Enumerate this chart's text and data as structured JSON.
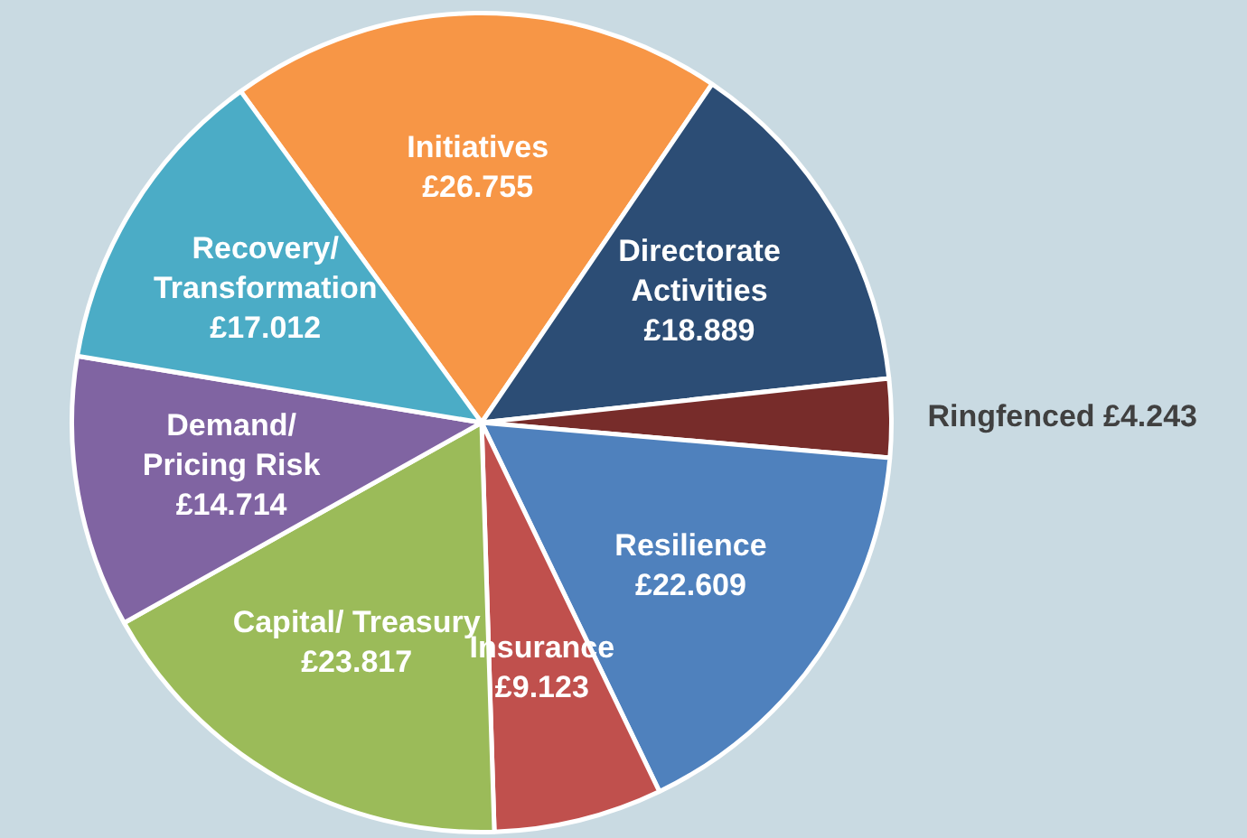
{
  "chart_data": {
    "type": "pie",
    "categories": [
      "Initiatives",
      "Directorate\nActivities",
      "Ringfenced",
      "Resilience",
      "Insurance",
      "Capital/ Treasury",
      "Demand/\nPricing Risk",
      "Recovery/\nTransformation"
    ],
    "values": [
      26.755,
      18.889,
      4.243,
      22.609,
      9.123,
      23.817,
      14.714,
      17.012
    ],
    "value_labels": [
      "£26.755",
      "£18.889",
      "£4.243",
      "£22.609",
      "£9.123",
      "£23.817",
      "£14.714",
      "£17.012"
    ],
    "colors": [
      "#f79646",
      "#2c4d75",
      "#772c2a",
      "#4f81bd",
      "#c0504d",
      "#9bbb59",
      "#8064a2",
      "#4bacc6"
    ],
    "legend": false
  }
}
